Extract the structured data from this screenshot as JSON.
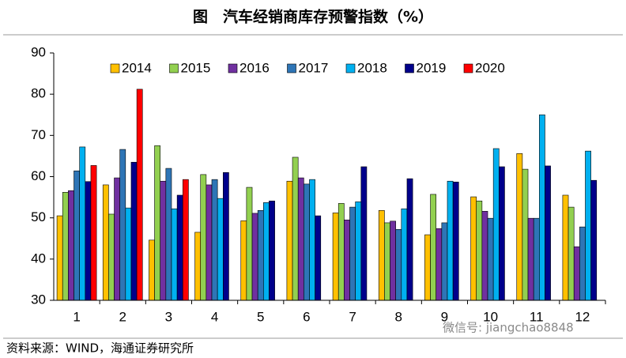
{
  "chart_data": {
    "type": "bar",
    "title": "图　汽车经销商库存预警指数（%）",
    "source": "资料来源：WIND，海通证券研究所",
    "watermark": "微信号: jiangchao8848",
    "categories": [
      "1",
      "2",
      "3",
      "4",
      "5",
      "6",
      "7",
      "8",
      "9",
      "10",
      "11",
      "12"
    ],
    "ylim": [
      30,
      90
    ],
    "yticks": [
      30,
      40,
      50,
      60,
      70,
      80,
      90
    ],
    "legend": "top",
    "series": [
      {
        "name": "2014",
        "color": "#FFC000",
        "values": [
          50.5,
          58.0,
          44.6,
          46.5,
          49.3,
          58.9,
          51.2,
          51.8,
          45.9,
          55.1,
          65.6,
          55.5
        ]
      },
      {
        "name": "2015",
        "color": "#92D050",
        "values": [
          56.2,
          50.9,
          67.5,
          60.5,
          57.4,
          64.7,
          53.5,
          48.8,
          55.7,
          54.1,
          61.8,
          52.6
        ]
      },
      {
        "name": "2016",
        "color": "#7030A0",
        "values": [
          56.6,
          59.7,
          58.9,
          58.0,
          51.1,
          59.7,
          49.5,
          49.2,
          47.4,
          51.6,
          49.9,
          43.0
        ]
      },
      {
        "name": "2017",
        "color": "#2E75B6",
        "values": [
          61.4,
          66.6,
          62.0,
          59.3,
          51.8,
          58.2,
          52.6,
          47.2,
          48.8,
          49.9,
          49.9,
          47.8
        ]
      },
      {
        "name": "2018",
        "color": "#00B0F0",
        "values": [
          67.2,
          52.4,
          52.2,
          54.7,
          53.7,
          59.3,
          53.9,
          52.2,
          58.9,
          66.8,
          75.0,
          66.2
        ]
      },
      {
        "name": "2019",
        "color": "#00008B",
        "values": [
          58.8,
          63.5,
          55.5,
          61.0,
          54.1,
          50.5,
          62.4,
          59.5,
          58.7,
          62.4,
          62.6,
          59.1
        ]
      },
      {
        "name": "2020",
        "color": "#FF0000",
        "values": [
          62.7,
          81.2,
          59.3,
          null,
          null,
          null,
          null,
          null,
          null,
          null,
          null,
          null
        ]
      }
    ]
  }
}
